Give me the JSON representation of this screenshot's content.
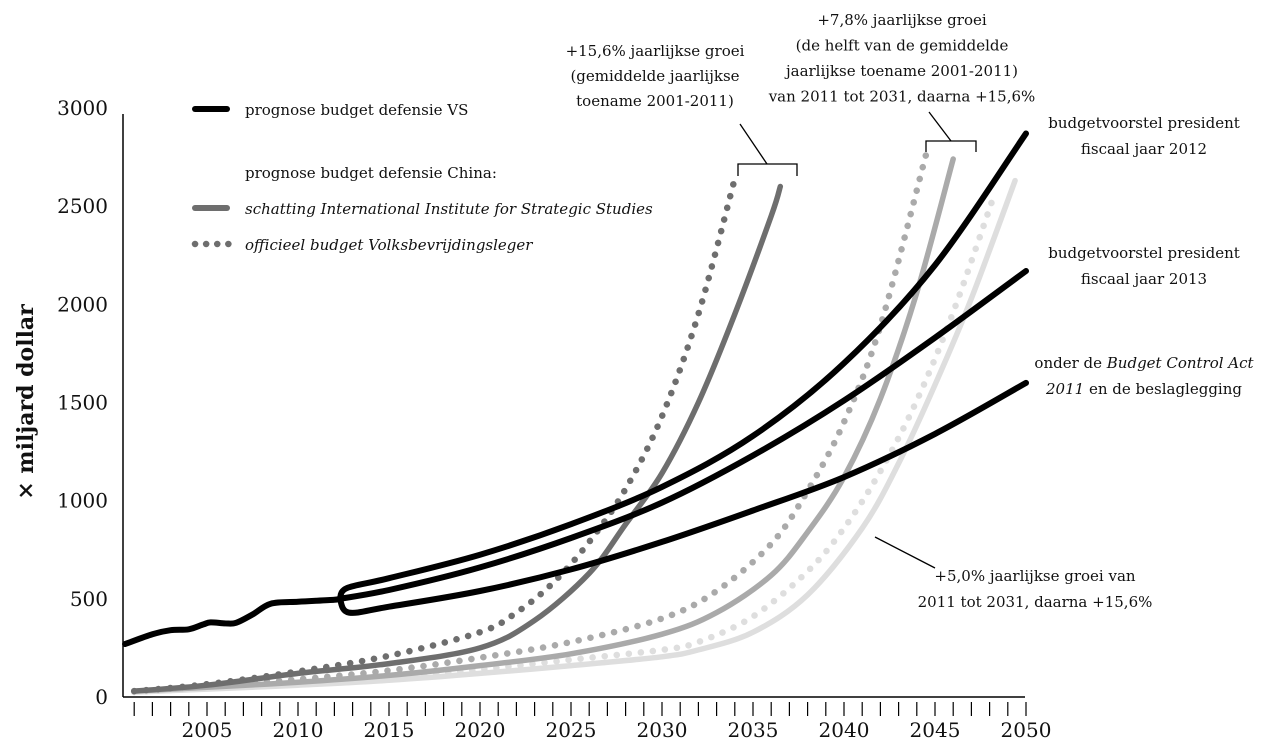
{
  "chart_data": {
    "type": "line",
    "ylabel": "× miljard dollar",
    "xlim": [
      2000,
      2050
    ],
    "ylim": [
      0,
      3000
    ],
    "x_ticks": [
      2005,
      2010,
      2015,
      2020,
      2025,
      2030,
      2035,
      2040,
      2045,
      2050
    ],
    "y_ticks": [
      0,
      500,
      1000,
      1500,
      2000,
      2500,
      3000
    ],
    "grid": false,
    "legend_position": "top-left",
    "legend": {
      "us": "prognose budget defensie VS",
      "china_heading": "prognose budget defensie China:",
      "iiss": "schatting International Institute for Strategic Studies",
      "pla": "officieel budget Volksbevrijdingsleger"
    },
    "colors": {
      "us": "#000000",
      "china_15_6": "#6e6e6e",
      "china_7_8": "#aaaaaa",
      "china_5_0": "#dedede"
    },
    "series": [
      {
        "group": "us",
        "role": "historical",
        "style": "solid",
        "x": [
          2000.5,
          2002,
          2003,
          2004,
          2004.8,
          2005.2,
          2006,
          2006.6,
          2007.5,
          2008.5,
          2010,
          2011,
          2012,
          2012.3
        ],
        "values": [
          270,
          320,
          340,
          345,
          370,
          380,
          375,
          378,
          420,
          475,
          485,
          490,
          495,
          500
        ]
      },
      {
        "group": "us",
        "role": "budgetvoorstel president fiscaal jaar 2012",
        "style": "solid",
        "x": [
          2012.3,
          2012.7,
          2015,
          2020,
          2025,
          2030,
          2035,
          2040,
          2045,
          2050
        ],
        "values": [
          500,
          555,
          605,
          725,
          880,
          1070,
          1330,
          1700,
          2200,
          2870
        ]
      },
      {
        "group": "us",
        "role": "budgetvoorstel president fiscaal jaar 2013",
        "style": "solid",
        "x": [
          2012.3,
          2015,
          2020,
          2025,
          2030,
          2035,
          2040,
          2045,
          2050
        ],
        "values": [
          500,
          545,
          660,
          810,
          990,
          1230,
          1510,
          1830,
          2170
        ]
      },
      {
        "group": "us",
        "role": "Budget Control Act 2011 en de beslaglegging",
        "style": "solid",
        "x": [
          2012.3,
          2012.8,
          2015,
          2020,
          2025,
          2030,
          2035,
          2040,
          2045,
          2050
        ],
        "values": [
          500,
          430,
          460,
          540,
          650,
          790,
          950,
          1120,
          1340,
          1600
        ]
      },
      {
        "group": "china_15_6",
        "role": "iiss",
        "style": "solid",
        "x": [
          2001,
          2005,
          2010,
          2015,
          2020,
          2023,
          2026,
          2028,
          2030,
          2032,
          2034,
          2036,
          2036.5
        ],
        "values": [
          30,
          60,
          120,
          170,
          250,
          390,
          630,
          880,
          1140,
          1500,
          1950,
          2450,
          2600
        ]
      },
      {
        "group": "china_15_6",
        "role": "pla",
        "style": "dotted",
        "x": [
          2001,
          2005,
          2010,
          2015,
          2020,
          2022,
          2024,
          2026,
          2028,
          2030,
          2032,
          2034
        ],
        "values": [
          30,
          65,
          130,
          210,
          330,
          430,
          580,
          790,
          1060,
          1430,
          1950,
          2640
        ]
      },
      {
        "group": "china_7_8",
        "role": "iiss",
        "style": "solid",
        "x": [
          2001,
          2005,
          2010,
          2015,
          2020,
          2025,
          2030,
          2033,
          2036,
          2038,
          2040,
          2042,
          2044,
          2046
        ],
        "values": [
          30,
          50,
          75,
          110,
          160,
          220,
          320,
          430,
          620,
          840,
          1120,
          1520,
          2060,
          2740
        ]
      },
      {
        "group": "china_7_8",
        "role": "pla",
        "style": "dotted",
        "x": [
          2001,
          2005,
          2010,
          2015,
          2020,
          2025,
          2030,
          2033,
          2036,
          2038,
          2040,
          2042,
          2044.5
        ],
        "values": [
          30,
          55,
          90,
          135,
          200,
          280,
          400,
          540,
          780,
          1050,
          1400,
          1890,
          2760
        ]
      },
      {
        "group": "china_5_0",
        "role": "iiss",
        "style": "solid",
        "x": [
          2001,
          2005,
          2010,
          2015,
          2020,
          2025,
          2030,
          2032,
          2035,
          2038,
          2041,
          2043,
          2045,
          2047,
          2049.4
        ],
        "values": [
          25,
          40,
          60,
          85,
          120,
          160,
          205,
          240,
          330,
          520,
          860,
          1190,
          1590,
          2030,
          2630
        ]
      },
      {
        "group": "china_5_0",
        "role": "pla",
        "style": "dotted",
        "x": [
          2001,
          2005,
          2010,
          2015,
          2020,
          2025,
          2030,
          2032,
          2035,
          2038,
          2040,
          2042,
          2044,
          2046,
          2048.3
        ],
        "values": [
          25,
          45,
          70,
          100,
          140,
          190,
          240,
          280,
          410,
          640,
          860,
          1150,
          1510,
          1960,
          2570
        ]
      }
    ],
    "annotations": {
      "a156": [
        "+15,6% jaarlijkse groei",
        "(gemiddelde jaarlijkse",
        "toename 2001-2011)"
      ],
      "a78": [
        "+7,8% jaarlijkse groei",
        "(de helft van de gemiddelde",
        "jaarlijkse toename 2001-2011)",
        "van 2011 tot 2031, daarna +15,6%"
      ],
      "a50": [
        "+5,0% jaarlijkse groei van",
        "2011 tot 2031, daarna +15,6%"
      ],
      "fy2012": [
        "budgetvoorstel president",
        "fiscaal jaar 2012"
      ],
      "fy2013": [
        "budgetvoorstel president",
        "fiscaal jaar 2013"
      ],
      "bca_line1_prefix": "onder de ",
      "bca_line1_italic": "Budget Control Act",
      "bca_line2_italic": "2011",
      "bca_line2_suffix": " en de beslaglegging"
    }
  }
}
